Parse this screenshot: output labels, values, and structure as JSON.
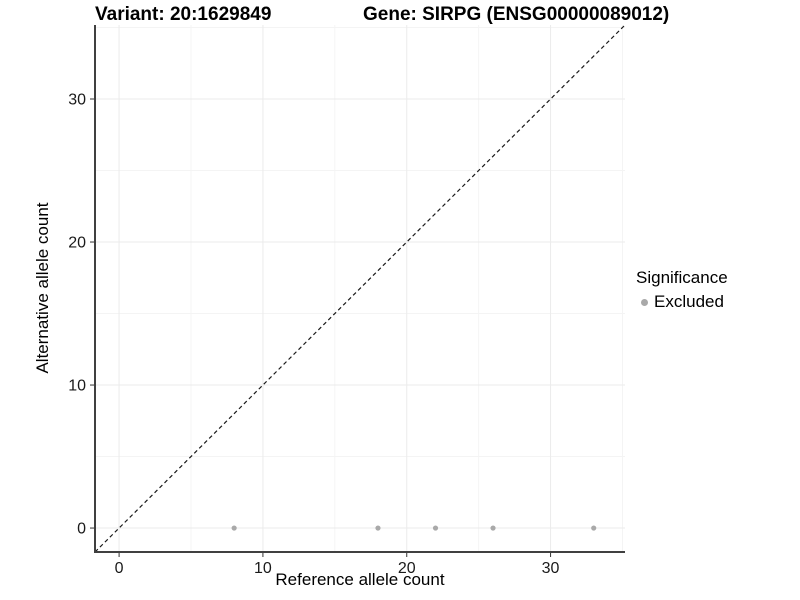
{
  "figure": {
    "title_variant": "Variant: 20:1629849",
    "title_gene": "Gene: SIRPG (ENSG00000089012)"
  },
  "chart_data": {
    "type": "scatter",
    "xlabel": "Reference allele count",
    "ylabel": "Alternative allele count",
    "xlim": [
      -1.675,
      35.175
    ],
    "ylim": [
      -1.675,
      35.175
    ],
    "x_ticks": [
      0,
      10,
      20,
      30
    ],
    "y_ticks": [
      0,
      10,
      20,
      30
    ],
    "x_minor_ticks": [
      5,
      15,
      25,
      35
    ],
    "y_minor_ticks": [
      5,
      15,
      25,
      35
    ],
    "grid": "major+minor",
    "reference_line": {
      "slope": 1,
      "intercept": 0,
      "style": "dashed"
    },
    "series": [
      {
        "name": "Excluded",
        "marker": "circle",
        "points": [
          [
            8,
            0
          ],
          [
            18,
            0
          ],
          [
            22,
            0
          ],
          [
            26,
            0
          ],
          [
            33,
            0
          ]
        ]
      }
    ],
    "legend": {
      "title": "Significance",
      "position": "right",
      "items": [
        {
          "label": "Excluded"
        }
      ]
    }
  },
  "colors": {
    "background": "#ffffff",
    "point": "#a9a9a9",
    "legend_dot": "#a9a9a9",
    "grid_major": "#ebebeb",
    "grid_minor": "#f4f4f4",
    "axis_line": "#404040",
    "tick_mark": "#333333",
    "tick_label": "#1a1a1a",
    "reference_line": "#1a1a1a"
  }
}
